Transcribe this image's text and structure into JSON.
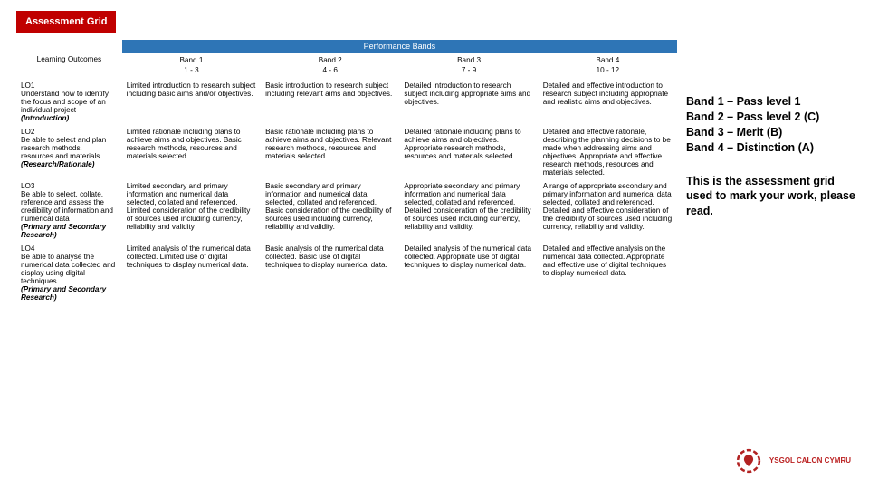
{
  "title": "Assessment Grid",
  "colors": {
    "title_bg": "#c00000",
    "perf_bg": "#2e75b6",
    "logo": "#b22222"
  },
  "table": {
    "lo_header": "Learning Outcomes",
    "perf_header": "Performance Bands",
    "bands": [
      {
        "name": "Band 1",
        "range": "1 - 3"
      },
      {
        "name": "Band 2",
        "range": "4 - 6"
      },
      {
        "name": "Band 3",
        "range": "7 - 9"
      },
      {
        "name": "Band 4",
        "range": "10 - 12"
      }
    ],
    "rows": [
      {
        "lo": "LO1\nUnderstand how to identify the focus and scope of an individual project",
        "section": "(Introduction)",
        "cells": [
          "Limited introduction to research subject including basic aims and/or objectives.",
          "Basic introduction to research subject including relevant aims and objectives.",
          "Detailed introduction to research subject including appropriate aims and objectives.",
          "Detailed and effective introduction to research subject including appropriate and realistic aims and objectives."
        ]
      },
      {
        "lo": "LO2\nBe able to select and plan research methods, resources and materials",
        "section": "(Research/Rationale)",
        "cells": [
          "Limited rationale including plans to achieve aims and objectives. Basic research methods, resources and materials selected.",
          "Basic rationale including plans to achieve aims and objectives. Relevant research methods, resources and materials selected.",
          "Detailed rationale including plans to achieve aims and objectives. Appropriate research methods, resources and materials selected.",
          "Detailed and effective rationale, describing the planning decisions to be made when addressing aims and objectives. Appropriate and effective research methods, resources and materials selected."
        ]
      },
      {
        "lo": "LO3\nBe able to select, collate, reference and assess the credibility of information and numerical data",
        "section": "(Primary and Secondary Research)",
        "cells": [
          "Limited secondary and primary information and numerical data selected, collated and referenced. Limited consideration of the credibility of sources used including currency, reliability and validity",
          "Basic secondary and primary information and numerical data selected, collated and referenced. Basic consideration of the credibility of sources used including currency, reliability and validity.",
          "Appropriate secondary and primary information and numerical data selected, collated and referenced. Detailed consideration of the credibility of sources used including currency, reliability and validity.",
          "A range of appropriate secondary and primary information and numerical data selected, collated and referenced. Detailed and effective consideration of the credibility of sources used including currency, reliability and validity."
        ]
      },
      {
        "lo": "LO4\nBe able to analyse the numerical data collected and display using digital techniques",
        "section": "(Primary and Secondary Research)",
        "cells": [
          "Limited analysis of the numerical data collected. Limited use of digital techniques to display numerical data.",
          "Basic analysis of the numerical data collected. Basic use of digital techniques to display numerical data.",
          "Detailed analysis of the numerical data collected. Appropriate use of digital techniques to display numerical data.",
          "Detailed and effective analysis on the numerical data collected. Appropriate and effective use of digital techniques to display numerical data."
        ]
      }
    ]
  },
  "legend": [
    "Band 1 – Pass level 1",
    "Band 2 – Pass level 2 (C)",
    "Band 3 – Merit (B)",
    "Band 4 – Distinction (A)"
  ],
  "note": "This is the assessment grid used to mark your work, please read.",
  "logo_text": "YSGOL CALON CYMRU"
}
